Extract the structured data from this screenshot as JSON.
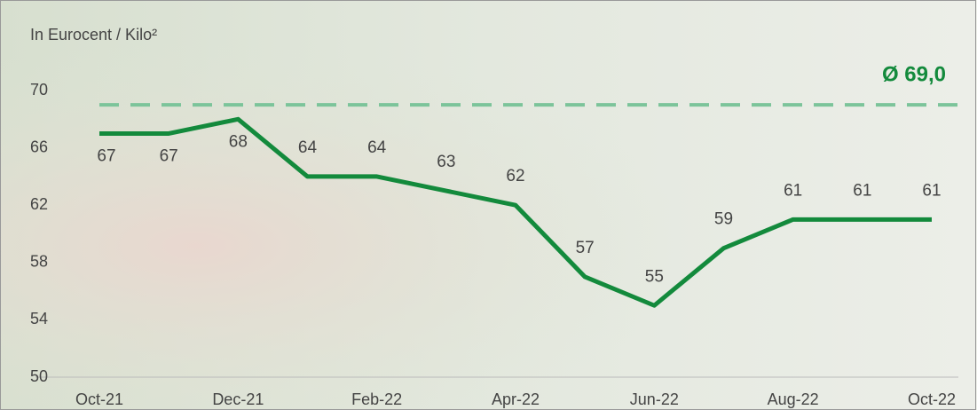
{
  "chart_data": {
    "type": "line",
    "y_axis_label": "In Eurocent / Kilo²",
    "categories": [
      "Oct-21",
      null,
      "Dec-21",
      null,
      "Feb-22",
      null,
      "Apr-22",
      null,
      "Jun-22",
      null,
      "Aug-22",
      null,
      "Oct-22"
    ],
    "series": [
      {
        "color": "#138a3c",
        "values": [
          67,
          67,
          68,
          64,
          64,
          63,
          62,
          57,
          55,
          59,
          61,
          61,
          61
        ]
      }
    ],
    "average": {
      "value": 69,
      "label": "Ø 69,0",
      "color": "#7cc49a"
    },
    "ylim": [
      50,
      70
    ],
    "yticks": [
      50,
      54,
      58,
      62,
      66,
      70
    ]
  }
}
